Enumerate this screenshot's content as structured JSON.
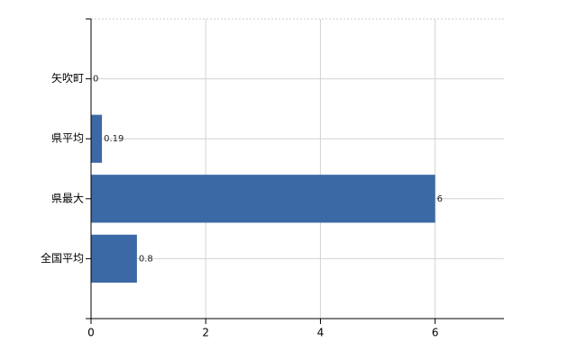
{
  "chart_data": {
    "type": "hbar",
    "categories": [
      "矢吹町",
      "県平均",
      "県最大",
      "全国平均"
    ],
    "values": [
      0,
      0.19,
      6,
      0.8
    ],
    "color": "#3a69a5",
    "xlim": [
      0,
      7.2
    ],
    "xticks": [
      0,
      2,
      4,
      6
    ],
    "grid": true
  }
}
